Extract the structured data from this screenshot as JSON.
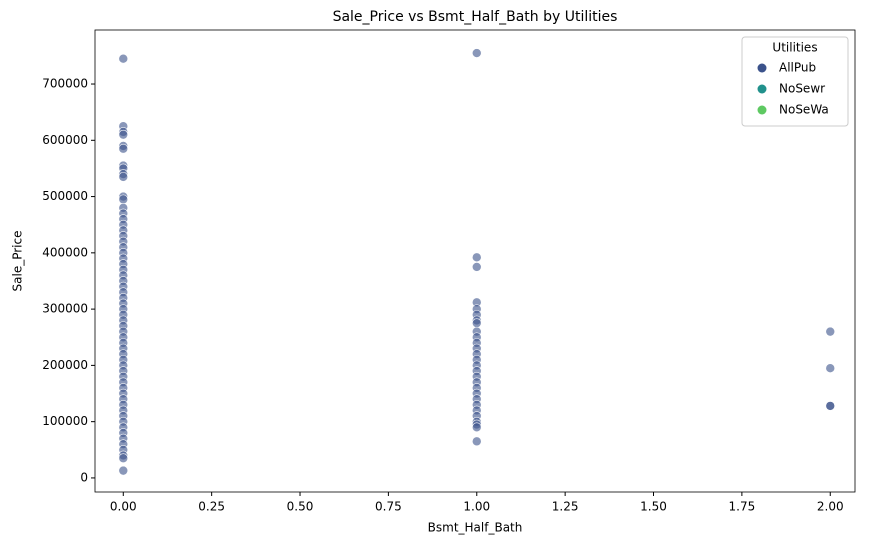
{
  "chart_data": {
    "type": "scatter",
    "title": "Sale_Price vs Bsmt_Half_Bath by Utilities",
    "x_label": "Bsmt_Half_Bath",
    "y_label": "Sale_Price",
    "legend_title": "Utilities",
    "legend": "upper right",
    "xlim": [
      -0.08,
      2.07
    ],
    "ylim": [
      -25000,
      796000
    ],
    "xticks": [
      {
        "value": 0,
        "label": "0.00"
      },
      {
        "value": 0.25,
        "label": "0.25"
      },
      {
        "value": 0.5,
        "label": "0.50"
      },
      {
        "value": 0.75,
        "label": "0.75"
      },
      {
        "value": 1,
        "label": "1.00"
      },
      {
        "value": 1.25,
        "label": "1.25"
      },
      {
        "value": 1.5,
        "label": "1.50"
      },
      {
        "value": 1.75,
        "label": "1.75"
      },
      {
        "value": 2,
        "label": "2.00"
      }
    ],
    "yticks": [
      0,
      100000,
      200000,
      300000,
      400000,
      500000,
      600000,
      700000
    ],
    "series": [
      {
        "name": "AllPub",
        "color": "#3b528b",
        "x": [
          0,
          0,
          0,
          0,
          0,
          0,
          0,
          0,
          0,
          0,
          0,
          0,
          0,
          0,
          0,
          0,
          0,
          0,
          0,
          0,
          0,
          0,
          0,
          0,
          0,
          0,
          0,
          0,
          0,
          0,
          0,
          0,
          0,
          0,
          0,
          0,
          0,
          0,
          0,
          0,
          0,
          0,
          0,
          0,
          0,
          0,
          0,
          0,
          0,
          0,
          0,
          0,
          0,
          0,
          0,
          0,
          0,
          0,
          0,
          1,
          1,
          1,
          1,
          1,
          1,
          1,
          1,
          1,
          1,
          1,
          1,
          1,
          1,
          1,
          1,
          1,
          1,
          1,
          1,
          1,
          1,
          1,
          1,
          1,
          1,
          1,
          1,
          2,
          2,
          2,
          2
        ],
        "values": [
          745000,
          625000,
          615000,
          610000,
          590000,
          585000,
          555000,
          550000,
          540000,
          535000,
          500000,
          495000,
          480000,
          470000,
          460000,
          450000,
          440000,
          430000,
          420000,
          410000,
          400000,
          390000,
          380000,
          370000,
          360000,
          350000,
          340000,
          330000,
          320000,
          310000,
          300000,
          290000,
          280000,
          270000,
          260000,
          250000,
          240000,
          230000,
          220000,
          210000,
          200000,
          190000,
          180000,
          170000,
          160000,
          150000,
          140000,
          130000,
          120000,
          110000,
          100000,
          90000,
          80000,
          70000,
          60000,
          50000,
          40000,
          35000,
          13000,
          755000,
          392000,
          375000,
          312000,
          300000,
          290000,
          280000,
          275000,
          260000,
          250000,
          240000,
          230000,
          220000,
          210000,
          200000,
          190000,
          180000,
          170000,
          160000,
          150000,
          140000,
          130000,
          120000,
          110000,
          100000,
          95000,
          90000,
          65000,
          260000,
          195000,
          128000,
          128000
        ]
      },
      {
        "name": "NoSewr",
        "color": "#21918c",
        "x": [],
        "values": []
      },
      {
        "name": "NoSeWa",
        "color": "#5ec962",
        "x": [],
        "values": []
      }
    ]
  }
}
